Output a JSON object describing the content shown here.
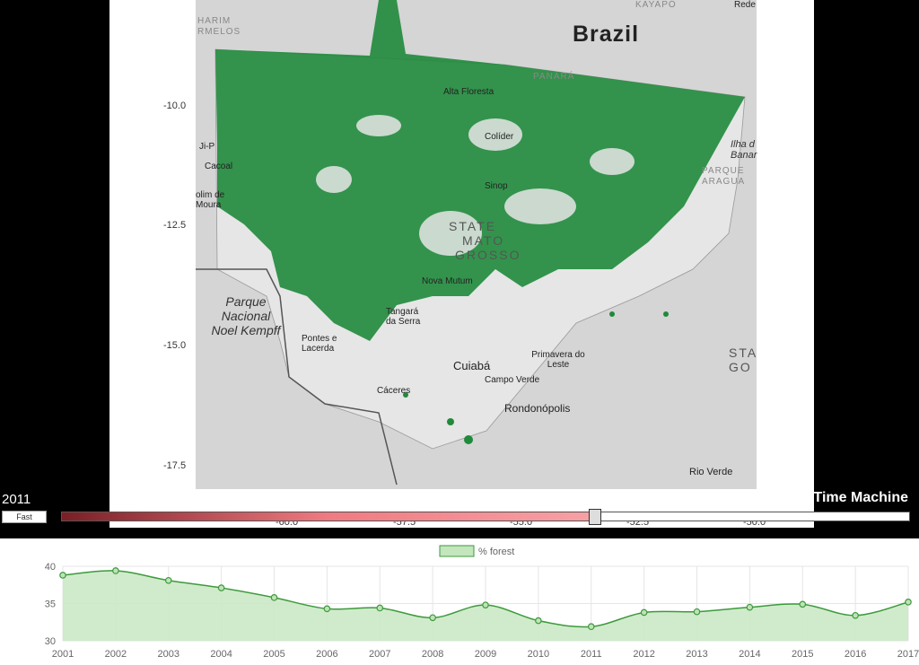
{
  "map": {
    "country_label": "Brazil",
    "state_label": [
      "STATE",
      "MATO",
      "GROSSO"
    ],
    "places": [
      {
        "name": "Alta Floresta"
      },
      {
        "name": "Colíder"
      },
      {
        "name": "Sinop"
      },
      {
        "name": "Nova Mutum"
      },
      {
        "name": "Tangará da Serra"
      },
      {
        "name": "Pontes e Lacerda"
      },
      {
        "name": "Cáceres"
      },
      {
        "name": "Cuiabá"
      },
      {
        "name": "Campo Verde"
      },
      {
        "name": "Primavera do Leste"
      },
      {
        "name": "Rondonópolis"
      },
      {
        "name": "Rio Verde"
      },
      {
        "name": "Cacoal"
      },
      {
        "name": "Ji-P"
      },
      {
        "name": "olim de Moura"
      },
      {
        "name": "Parque Nacional Noel Kempff"
      },
      {
        "name": "KAYAPÓ"
      },
      {
        "name": "PANARÁ"
      },
      {
        "name": "Rede"
      },
      {
        "name": "HARIM RMELOS"
      },
      {
        "name": "Ilha d Banar"
      },
      {
        "name": "PARQUE ARAGUA"
      },
      {
        "name": "STA GO"
      }
    ],
    "y_ticks": [
      "-10.0",
      "-12.5",
      "-15.0",
      "-17.5"
    ],
    "x_ticks": [
      "-60.0",
      "-57.5",
      "-55.0",
      "-52.5",
      "-50.0"
    ]
  },
  "controls": {
    "year": "2011",
    "speed_label": "Fast",
    "brand": "Time Machine",
    "timeline_progress": 0.628
  },
  "colors": {
    "forest": "#1f8a3b",
    "timeline_start": "#7a1f25",
    "timeline_end": "#f7a1a5",
    "chart_line": "#3d9a3d",
    "chart_fill": "#cbe9c5"
  },
  "chart_data": {
    "type": "area",
    "legend": "% forest",
    "x": [
      "2001",
      "2002",
      "2003",
      "2004",
      "2005",
      "2006",
      "2007",
      "2008",
      "2009",
      "2010",
      "2011",
      "2012",
      "2013",
      "2014",
      "2015",
      "2016",
      "2017"
    ],
    "values": [
      38.8,
      39.4,
      38.1,
      37.1,
      35.8,
      34.3,
      34.4,
      33.1,
      34.8,
      32.7,
      31.9,
      33.8,
      33.9,
      34.5,
      34.9,
      33.4,
      35.2
    ],
    "ylim": [
      30,
      40
    ],
    "y_ticks": [
      30,
      35,
      40
    ],
    "grid": true
  }
}
